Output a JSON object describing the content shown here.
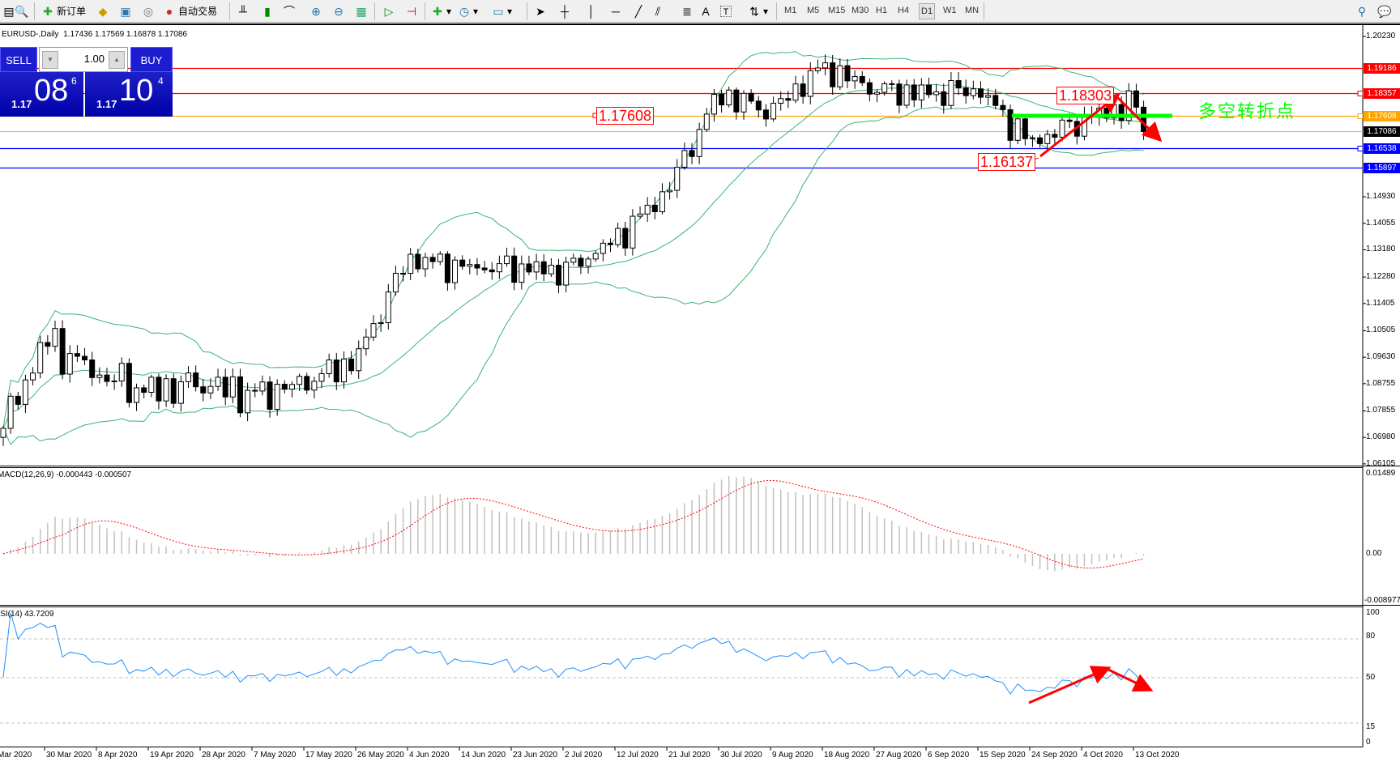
{
  "toolbar": {
    "new_order": "新订单",
    "auto_trading": "自动交易",
    "timeframes": [
      "M1",
      "M5",
      "M15",
      "M30",
      "H1",
      "H4",
      "D1",
      "W1",
      "MN"
    ],
    "active_timeframe": "D1",
    "draw_text_tool": "A",
    "label_tool": "T"
  },
  "chart": {
    "symbol": "EURUSD-,Daily",
    "ohlc": "1.17436 1.17569 1.16878 1.17086"
  },
  "order_panel": {
    "sell_label": "SELL",
    "buy_label": "BUY",
    "lot": "1.00",
    "sell": {
      "prefix": "1.17",
      "big": "08",
      "sup": "6"
    },
    "buy": {
      "prefix": "1.17",
      "big": "10",
      "sup": "4"
    }
  },
  "price_axis": {
    "ticks": [
      "1.20230",
      "1.14930",
      "1.14055",
      "1.13180",
      "1.12280",
      "1.11405",
      "1.10505",
      "1.09630",
      "1.08755",
      "1.07855",
      "1.06980",
      "1.06105"
    ]
  },
  "levels": [
    {
      "price": "1.19186",
      "color": "#ff0000"
    },
    {
      "price": "1.18357",
      "color": "#ff0000"
    },
    {
      "price": "1.17608",
      "color": "#ffa500"
    },
    {
      "price": "1.17086",
      "color": "#000000"
    },
    {
      "price": "1.16538",
      "color": "#0000ff"
    },
    {
      "price": "1.15897",
      "color": "#0000ff"
    }
  ],
  "annotations": {
    "label_a": "1.17608",
    "label_b": "1.18303",
    "label_c": "1.16137",
    "text": "多空转折点",
    "arrow_color": "#ff0000",
    "pivot_line_color": "#00ff00"
  },
  "macd": {
    "label": "MACD(12,26,9) -0.000443 -0.000507",
    "ticks": [
      "0.01489",
      "0.00",
      "-0.008977"
    ]
  },
  "rsi": {
    "label": "RSI(14) 43.7209",
    "ticks": [
      "100",
      "80",
      "50",
      "15",
      "0"
    ]
  },
  "dates": [
    {
      "label": "Mar 2020",
      "close": 1.0705
    },
    {
      "label": "30 Mar 2020",
      "close": 1.102
    },
    {
      "label": "8 Apr 2020",
      "close": 1.0908
    },
    {
      "label": "19 Apr 2020",
      "close": 1.0849
    },
    {
      "label": "28 Apr 2020",
      "close": 1.0878
    },
    {
      "label": "7 May 2020",
      "close": 1.0835
    },
    {
      "label": "17 May 2020",
      "close": 1.0878
    },
    {
      "label": "26 May 2020",
      "close": 1.0952
    },
    {
      "label": "4 Jun 2020",
      "close": 1.129
    },
    {
      "label": "14 Jun 2020",
      "close": 1.126
    },
    {
      "label": "23 Jun 2020",
      "close": 1.126
    },
    {
      "label": "2 Jul 2020",
      "close": 1.1246
    },
    {
      "label": "12 Jul 2020",
      "close": 1.1349
    },
    {
      "label": "21 Jul 2020",
      "close": 1.1511
    },
    {
      "label": "30 Jul 2020",
      "close": 1.1833
    },
    {
      "label": "9 Aug 2020",
      "close": 1.1775
    },
    {
      "label": "18 Aug 2020",
      "close": 1.1922
    },
    {
      "label": "27 Aug 2020",
      "close": 1.1848
    },
    {
      "label": "6 Sep 2020",
      "close": 1.1833
    },
    {
      "label": "15 Sep 2020",
      "close": 1.1848
    },
    {
      "label": "24 Sep 2020",
      "close": 1.1672
    },
    {
      "label": "4 Oct 2020",
      "close": 1.1745
    },
    {
      "label": "13 Oct 2020",
      "close": 1.1804
    }
  ],
  "last_close": 1.17086,
  "colors": {
    "bands": "#3cb371",
    "macd_hist": "#c0c0c0",
    "macd_signal": "#ff0000",
    "rsi": "#1e90ff"
  }
}
